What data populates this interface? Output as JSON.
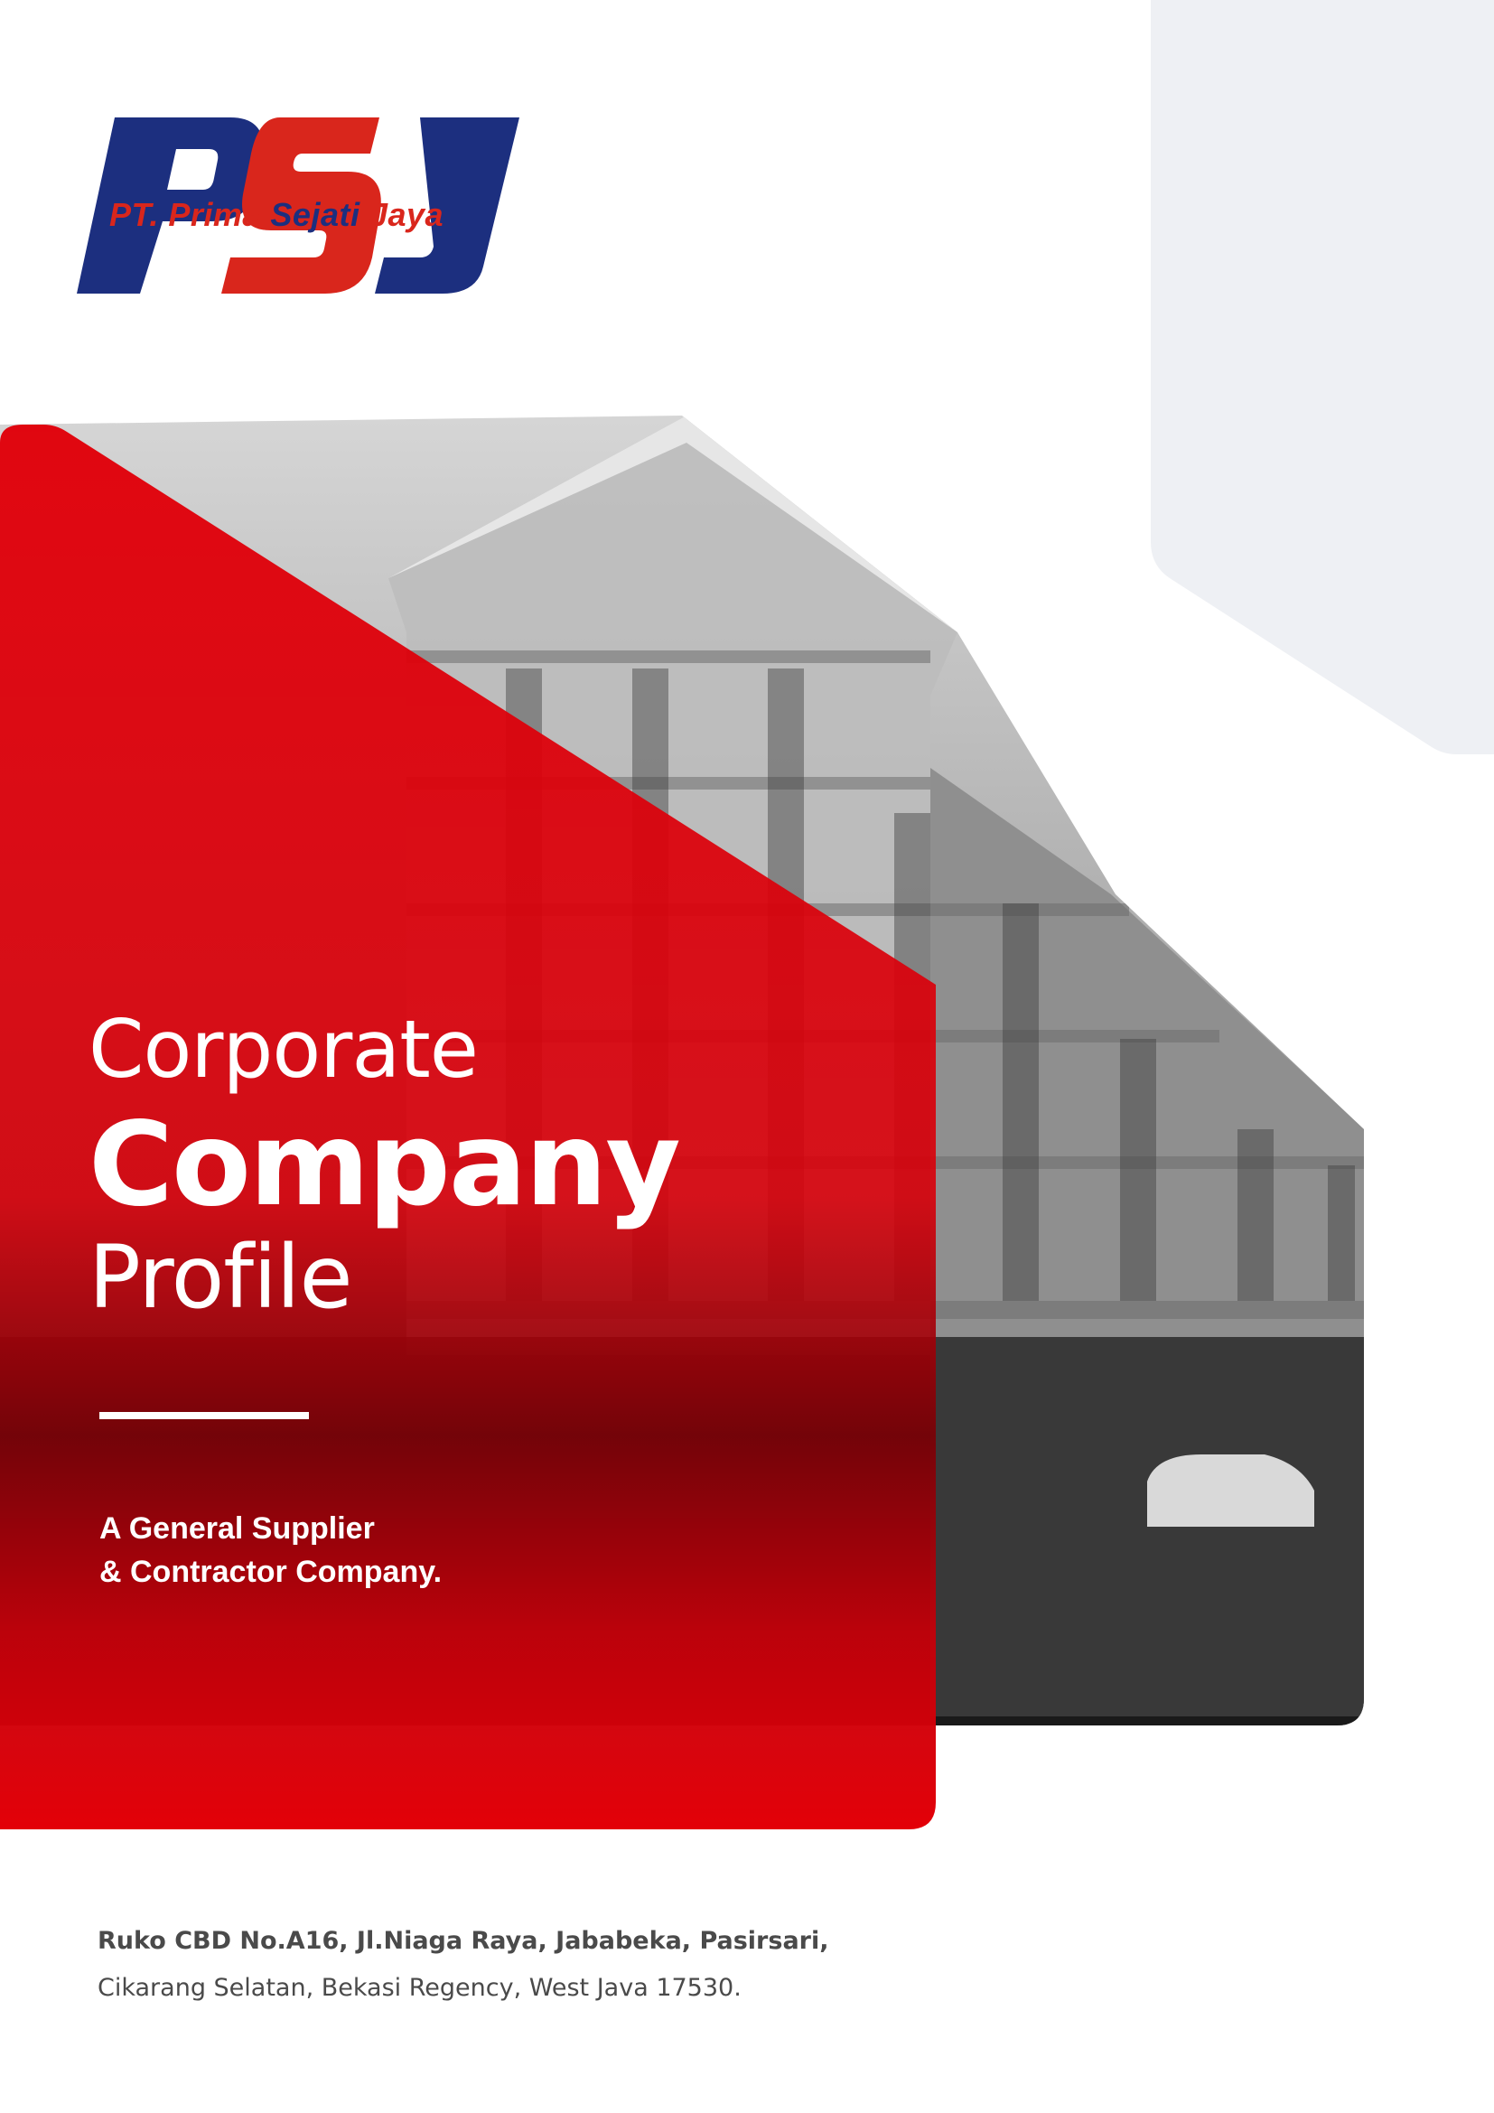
{
  "logo": {
    "monogram": "PSJ",
    "tagline_part1": "PT. Prima",
    "tagline_part2": "Sejati",
    "tagline_part3": "Jaya"
  },
  "cover": {
    "title_line1": "Corporate",
    "title_line2": "Company",
    "title_line3": "Profile",
    "subtitle_line1": "A General Supplier",
    "subtitle_line2": "& Contractor Company."
  },
  "address": {
    "line1": "Ruko CBD No.A16, Jl.Niaga Raya, Jababeka, Pasirsari,",
    "line2": "Cikarang Selatan, Bekasi Regency, West Java 17530."
  },
  "colors": {
    "brand_red": "#e1000a",
    "brand_navy": "#1c2f7f",
    "logo_red": "#d9261c",
    "corner_gray": "#eef0f4",
    "text_gray": "#4a4a4a"
  }
}
